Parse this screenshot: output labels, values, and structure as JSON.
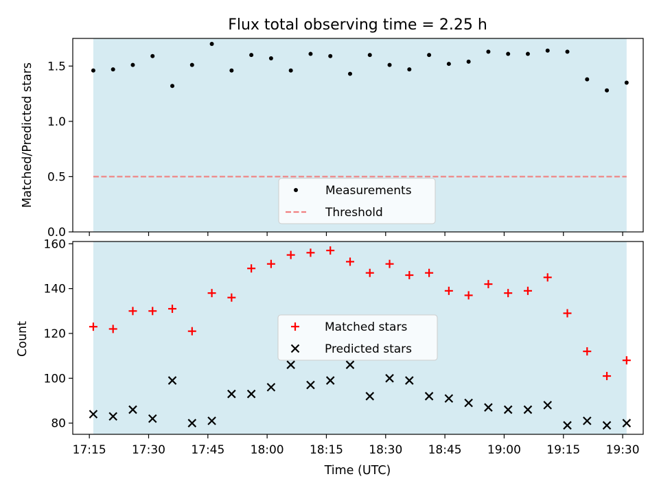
{
  "chart_data": {
    "title": "Flux total observing time = 2.25 h",
    "xlabel": "Time (UTC)",
    "x_tick_labels": [
      "17:15",
      "17:30",
      "17:45",
      "18:00",
      "18:15",
      "18:30",
      "18:45",
      "19:00",
      "19:15",
      "19:30"
    ],
    "x_tick_minutes": [
      1035,
      1050,
      1065,
      1080,
      1095,
      1110,
      1125,
      1140,
      1155,
      1170
    ],
    "times_min": [
      1036,
      1041,
      1046,
      1051,
      1056,
      1061,
      1066,
      1071,
      1076,
      1081,
      1086,
      1091,
      1096,
      1101,
      1106,
      1111,
      1116,
      1121,
      1126,
      1131,
      1136,
      1141,
      1146,
      1151,
      1156,
      1161,
      1166,
      1171
    ],
    "xlim_min": [
      1030.8,
      1175.2
    ],
    "shade_span_min": [
      1036,
      1171
    ],
    "shade_color": "#add8e6",
    "panels": [
      {
        "type": "scatter",
        "ylabel": "Matched/Predicted stars",
        "ylim": [
          0,
          1.75
        ],
        "yticks": [
          0.0,
          0.5,
          1.0,
          1.5
        ],
        "ytick_labels": [
          "0.0",
          "0.5",
          "1.0",
          "1.5"
        ],
        "threshold": 0.5,
        "threshold_color": "#f08080",
        "legend": [
          "Measurements",
          "Threshold"
        ],
        "legend_position": "lower-center",
        "series": [
          {
            "name": "Measurements",
            "color": "#000000",
            "marker": "dot",
            "values": [
              1.46,
              1.47,
              1.51,
              1.59,
              1.32,
              1.51,
              1.7,
              1.46,
              1.6,
              1.57,
              1.46,
              1.61,
              1.59,
              1.43,
              1.6,
              1.51,
              1.47,
              1.6,
              1.52,
              1.54,
              1.63,
              1.61,
              1.61,
              1.64,
              1.63,
              1.38,
              1.28,
              1.35
            ]
          }
        ]
      },
      {
        "type": "scatter",
        "ylabel": "Count",
        "ylim": [
          75,
          161
        ],
        "yticks": [
          80,
          100,
          120,
          140,
          160
        ],
        "ytick_labels": [
          "80",
          "100",
          "120",
          "140",
          "160"
        ],
        "legend": [
          "Matched stars",
          "Predicted stars"
        ],
        "legend_position": "center",
        "series": [
          {
            "name": "Matched stars",
            "color": "#ff0000",
            "marker": "plus",
            "values": [
              123,
              122,
              130,
              130,
              131,
              121,
              138,
              136,
              149,
              151,
              155,
              156,
              157,
              152,
              147,
              151,
              146,
              147,
              139,
              137,
              142,
              138,
              139,
              145,
              129,
              112,
              101,
              108
            ]
          },
          {
            "name": "Predicted stars",
            "color": "#000000",
            "marker": "x",
            "values": [
              84,
              83,
              86,
              82,
              99,
              80,
              81,
              93,
              93,
              96,
              106,
              97,
              99,
              106,
              92,
              100,
              99,
              92,
              91,
              89,
              87,
              86,
              86,
              88,
              79,
              81,
              79,
              80
            ]
          }
        ]
      }
    ]
  }
}
